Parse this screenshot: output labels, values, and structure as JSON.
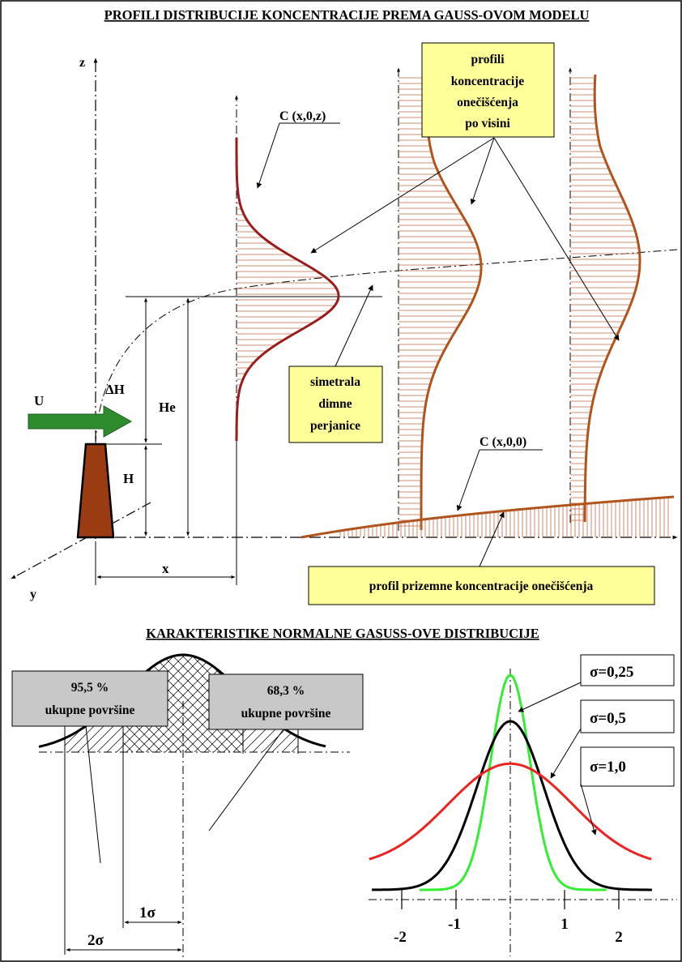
{
  "top": {
    "title": "PROFILI DISTRIBUCIJE KONCENTRACIJE PREMA GAUSS-OVOM MODELU",
    "axis_z": "z",
    "axis_y": "y",
    "axis_x": "x",
    "wind_label": "U",
    "delta_h_label": "ΔH",
    "he_label": "He",
    "h_label": "H",
    "profile_label_vertical": "C (x,0,z)",
    "profile_label_ground": "C (x,0,0)",
    "callout_profiles": [
      "profili",
      "koncentracije",
      "onečišćenja",
      "po visini"
    ],
    "callout_axis": [
      "simetrala",
      "dimne",
      "perjanice"
    ],
    "callout_ground": "profil prizemne koncentracije onečišćenja"
  },
  "bottom": {
    "title": "KARAKTERISTIKE NORMALNE GASUSS-OVE DISTRIBUCIJE",
    "box_95": [
      "95,5 %",
      "ukupne površine"
    ],
    "box_68": [
      "68,3 %",
      "ukupne površine"
    ],
    "dim_1s": "1σ",
    "dim_2s": "2σ"
  },
  "chart_data": {
    "type": "line",
    "ticks": [
      "-2",
      "-1",
      "1",
      "2"
    ],
    "series": [
      {
        "name": "σ=0,25",
        "sigma": 0.25,
        "color": "#33ee33"
      },
      {
        "name": "σ=0,5",
        "sigma": 0.5,
        "color": "#000000"
      },
      {
        "name": "σ=1,0",
        "sigma": 1.0,
        "color": "#ee2222"
      }
    ]
  },
  "colors": {
    "profile": "#9b1c1c",
    "profile2": "#b0541c",
    "hatch": "#c26a4a",
    "stack": "#9b3b12",
    "arrow": "#2e8b2e",
    "callout_bg": "#ffff99",
    "gray_box": "#c8c8c8"
  }
}
